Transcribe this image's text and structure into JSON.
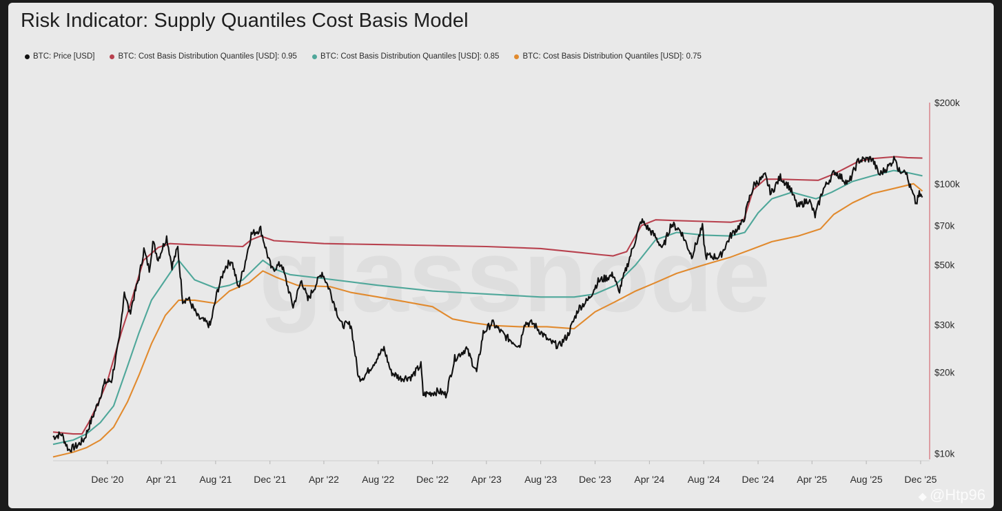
{
  "title": "Risk Indicator: Supply Quantiles Cost Basis Model",
  "watermark": "glassnode",
  "corner_tag": "@Htp96",
  "colors": {
    "price": "#111111",
    "q95": "#b8414e",
    "q85": "#4fa79a",
    "q75": "#e18a2e",
    "right_axis_line": "#d36a72"
  },
  "legend": [
    {
      "label": "BTC: Price [USD]",
      "color": "#111111"
    },
    {
      "label": "BTC: Cost Basis Distribution Quantiles [USD]: 0.95",
      "color": "#b8414e"
    },
    {
      "label": "BTC: Cost Basis Distribution Quantiles [USD]: 0.85",
      "color": "#4fa79a"
    },
    {
      "label": "BTC: Cost Basis Distribution Quantiles [USD]: 0.75",
      "color": "#e18a2e"
    }
  ],
  "chart_data": {
    "type": "line",
    "title": "Risk Indicator: Supply Quantiles Cost Basis Model",
    "xlabel": "",
    "ylabel": "",
    "yscale": "log",
    "ylim": [
      9500,
      200000
    ],
    "xlim": [
      "2020-08-01",
      "2025-12-15"
    ],
    "legend_position": "top-left",
    "grid": false,
    "y_ticks": [
      {
        "value": 10000,
        "label": "$10k"
      },
      {
        "value": 20000,
        "label": "$20k"
      },
      {
        "value": 30000,
        "label": "$30k"
      },
      {
        "value": 50000,
        "label": "$50k"
      },
      {
        "value": 70000,
        "label": "$70k"
      },
      {
        "value": 100000,
        "label": "$100k"
      },
      {
        "value": 200000,
        "label": "$200k"
      }
    ],
    "x_ticks": [
      {
        "date": "2020-12-01",
        "label": "Dec '20"
      },
      {
        "date": "2021-04-01",
        "label": "Apr '21"
      },
      {
        "date": "2021-08-01",
        "label": "Aug '21"
      },
      {
        "date": "2021-12-01",
        "label": "Dec '21"
      },
      {
        "date": "2022-04-01",
        "label": "Apr '22"
      },
      {
        "date": "2022-08-01",
        "label": "Aug '22"
      },
      {
        "date": "2022-12-01",
        "label": "Dec '22"
      },
      {
        "date": "2023-04-01",
        "label": "Apr '23"
      },
      {
        "date": "2023-08-01",
        "label": "Aug '23"
      },
      {
        "date": "2023-12-01",
        "label": "Dec '23"
      },
      {
        "date": "2024-04-01",
        "label": "Apr '24"
      },
      {
        "date": "2024-08-01",
        "label": "Aug '24"
      },
      {
        "date": "2024-12-01",
        "label": "Dec '24"
      },
      {
        "date": "2025-04-01",
        "label": "Apr '25"
      },
      {
        "date": "2025-08-01",
        "label": "Aug '25"
      },
      {
        "date": "2025-12-01",
        "label": "Dec '25"
      }
    ],
    "series": [
      {
        "name": "BTC: Price [USD]",
        "color": "#111111",
        "points": [
          [
            "2020-08-01",
            11500
          ],
          [
            "2020-08-20",
            11800
          ],
          [
            "2020-09-05",
            10300
          ],
          [
            "2020-09-25",
            10700
          ],
          [
            "2020-10-10",
            11300
          ],
          [
            "2020-10-25",
            13100
          ],
          [
            "2020-11-10",
            15400
          ],
          [
            "2020-11-25",
            18300
          ],
          [
            "2020-12-10",
            18600
          ],
          [
            "2020-12-28",
            26500
          ],
          [
            "2021-01-08",
            40000
          ],
          [
            "2021-01-20",
            33000
          ],
          [
            "2021-02-10",
            45000
          ],
          [
            "2021-02-21",
            57000
          ],
          [
            "2021-03-05",
            48000
          ],
          [
            "2021-03-13",
            61000
          ],
          [
            "2021-03-25",
            52500
          ],
          [
            "2021-04-13",
            63500
          ],
          [
            "2021-04-25",
            49500
          ],
          [
            "2021-05-08",
            58000
          ],
          [
            "2021-05-19",
            37000
          ],
          [
            "2021-06-01",
            37500
          ],
          [
            "2021-06-22",
            32000
          ],
          [
            "2021-07-20",
            29800
          ],
          [
            "2021-08-05",
            40000
          ],
          [
            "2021-08-22",
            49000
          ],
          [
            "2021-09-06",
            52000
          ],
          [
            "2021-09-21",
            41000
          ],
          [
            "2021-10-05",
            50000
          ],
          [
            "2021-10-20",
            65000
          ],
          [
            "2021-11-10",
            68000
          ],
          [
            "2021-11-26",
            54000
          ],
          [
            "2021-12-05",
            48000
          ],
          [
            "2021-12-27",
            50500
          ],
          [
            "2022-01-22",
            35000
          ],
          [
            "2022-02-10",
            44000
          ],
          [
            "2022-02-24",
            37000
          ],
          [
            "2022-03-28",
            47000
          ],
          [
            "2022-04-15",
            40000
          ],
          [
            "2022-05-10",
            30000
          ],
          [
            "2022-06-01",
            30000
          ],
          [
            "2022-06-18",
            19000
          ],
          [
            "2022-07-01",
            19300
          ],
          [
            "2022-08-14",
            24500
          ],
          [
            "2022-08-30",
            20000
          ],
          [
            "2022-09-20",
            19000
          ],
          [
            "2022-10-15",
            19200
          ],
          [
            "2022-11-05",
            21300
          ],
          [
            "2022-11-10",
            16500
          ],
          [
            "2022-12-15",
            17000
          ],
          [
            "2022-12-31",
            16500
          ],
          [
            "2023-01-20",
            22500
          ],
          [
            "2023-02-15",
            24500
          ],
          [
            "2023-03-10",
            20000
          ],
          [
            "2023-03-25",
            28000
          ],
          [
            "2023-04-14",
            30500
          ],
          [
            "2023-05-15",
            27000
          ],
          [
            "2023-06-15",
            25000
          ],
          [
            "2023-06-25",
            30500
          ],
          [
            "2023-07-15",
            30300
          ],
          [
            "2023-08-20",
            26000
          ],
          [
            "2023-09-11",
            25000
          ],
          [
            "2023-10-01",
            27500
          ],
          [
            "2023-10-25",
            34500
          ],
          [
            "2023-11-15",
            37000
          ],
          [
            "2023-12-08",
            43500
          ],
          [
            "2024-01-12",
            46000
          ],
          [
            "2024-01-23",
            39500
          ],
          [
            "2024-02-15",
            52000
          ],
          [
            "2024-03-14",
            73000
          ],
          [
            "2024-04-13",
            64000
          ],
          [
            "2024-05-01",
            57500
          ],
          [
            "2024-05-20",
            71000
          ],
          [
            "2024-06-10",
            67000
          ],
          [
            "2024-07-05",
            54000
          ],
          [
            "2024-07-29",
            69000
          ],
          [
            "2024-08-05",
            54000
          ],
          [
            "2024-09-06",
            53500
          ],
          [
            "2024-09-30",
            64000
          ],
          [
            "2024-10-29",
            72500
          ],
          [
            "2024-11-12",
            89000
          ],
          [
            "2024-11-22",
            99000
          ],
          [
            "2024-12-17",
            107000
          ],
          [
            "2024-12-30",
            92000
          ],
          [
            "2025-01-20",
            106000
          ],
          [
            "2025-02-10",
            97000
          ],
          [
            "2025-02-28",
            82000
          ],
          [
            "2025-03-25",
            87500
          ],
          [
            "2025-04-08",
            76000
          ],
          [
            "2025-04-25",
            94500
          ],
          [
            "2025-05-22",
            111000
          ],
          [
            "2025-06-22",
            100000
          ],
          [
            "2025-07-14",
            122000
          ],
          [
            "2025-08-14",
            124000
          ],
          [
            "2025-08-30",
            108000
          ],
          [
            "2025-09-20",
            116000
          ],
          [
            "2025-10-06",
            126000
          ],
          [
            "2025-10-12",
            111000
          ],
          [
            "2025-10-27",
            114000
          ],
          [
            "2025-11-04",
            101000
          ],
          [
            "2025-11-21",
            84000
          ],
          [
            "2025-11-28",
            91500
          ],
          [
            "2025-12-05",
            89000
          ]
        ]
      },
      {
        "name": "BTC: Cost Basis Distribution Quantiles [USD]: 0.95",
        "color": "#b8414e",
        "points": [
          [
            "2020-08-01",
            12000
          ],
          [
            "2020-09-15",
            11800
          ],
          [
            "2020-10-05",
            11800
          ],
          [
            "2020-10-20",
            13000
          ],
          [
            "2020-11-10",
            15300
          ],
          [
            "2020-12-01",
            18500
          ],
          [
            "2021-01-01",
            28000
          ],
          [
            "2021-01-20",
            35000
          ],
          [
            "2021-02-20",
            52000
          ],
          [
            "2021-03-25",
            58000
          ],
          [
            "2021-04-20",
            60000
          ],
          [
            "2021-06-01",
            59500
          ],
          [
            "2021-08-01",
            59000
          ],
          [
            "2021-10-01",
            58500
          ],
          [
            "2021-10-20",
            62000
          ],
          [
            "2021-11-10",
            64000
          ],
          [
            "2021-12-10",
            61500
          ],
          [
            "2022-04-01",
            60000
          ],
          [
            "2022-08-01",
            59500
          ],
          [
            "2022-12-01",
            59000
          ],
          [
            "2023-04-01",
            58500
          ],
          [
            "2023-08-01",
            57500
          ],
          [
            "2023-11-01",
            55500
          ],
          [
            "2023-12-15",
            54500
          ],
          [
            "2024-01-10",
            54000
          ],
          [
            "2024-02-10",
            56000
          ],
          [
            "2024-03-14",
            70000
          ],
          [
            "2024-04-15",
            73500
          ],
          [
            "2024-06-01",
            73000
          ],
          [
            "2024-08-01",
            72500
          ],
          [
            "2024-10-01",
            72000
          ],
          [
            "2024-10-30",
            73500
          ],
          [
            "2024-11-20",
            95000
          ],
          [
            "2024-12-17",
            104000
          ],
          [
            "2025-01-15",
            104000
          ],
          [
            "2025-03-01",
            103500
          ],
          [
            "2025-04-15",
            103000
          ],
          [
            "2025-05-22",
            109000
          ],
          [
            "2025-07-14",
            121000
          ],
          [
            "2025-08-14",
            124000
          ],
          [
            "2025-10-06",
            126000
          ],
          [
            "2025-11-01",
            125000
          ],
          [
            "2025-12-05",
            124500
          ]
        ]
      },
      {
        "name": "BTC: Cost Basis Distribution Quantiles [USD]: 0.85",
        "color": "#4fa79a",
        "points": [
          [
            "2020-08-01",
            10800
          ],
          [
            "2020-09-15",
            11200
          ],
          [
            "2020-10-15",
            11800
          ],
          [
            "2020-11-15",
            13000
          ],
          [
            "2020-12-15",
            15000
          ],
          [
            "2021-01-15",
            21000
          ],
          [
            "2021-02-10",
            28000
          ],
          [
            "2021-03-10",
            37000
          ],
          [
            "2021-04-10",
            44000
          ],
          [
            "2021-05-10",
            52000
          ],
          [
            "2021-06-15",
            44000
          ],
          [
            "2021-08-01",
            41000
          ],
          [
            "2021-09-01",
            42000
          ],
          [
            "2021-10-01",
            44000
          ],
          [
            "2021-11-15",
            52000
          ],
          [
            "2021-12-15",
            48000
          ],
          [
            "2022-01-15",
            46000
          ],
          [
            "2022-04-01",
            44500
          ],
          [
            "2022-08-01",
            42000
          ],
          [
            "2022-12-01",
            40000
          ],
          [
            "2023-04-01",
            39000
          ],
          [
            "2023-08-01",
            38000
          ],
          [
            "2023-10-15",
            38000
          ],
          [
            "2023-12-01",
            39000
          ],
          [
            "2024-01-15",
            42000
          ],
          [
            "2024-03-01",
            50000
          ],
          [
            "2024-04-15",
            62000
          ],
          [
            "2024-06-01",
            66000
          ],
          [
            "2024-08-01",
            64500
          ],
          [
            "2024-10-01",
            64000
          ],
          [
            "2024-11-01",
            66000
          ],
          [
            "2024-12-01",
            78000
          ],
          [
            "2025-01-01",
            88000
          ],
          [
            "2025-02-15",
            93000
          ],
          [
            "2025-04-10",
            88000
          ],
          [
            "2025-05-15",
            93000
          ],
          [
            "2025-07-01",
            102000
          ],
          [
            "2025-08-15",
            107000
          ],
          [
            "2025-10-01",
            112000
          ],
          [
            "2025-11-01",
            110000
          ],
          [
            "2025-12-05",
            107000
          ]
        ]
      },
      {
        "name": "BTC: Cost Basis Distribution Quantiles [USD]: 0.75",
        "color": "#e18a2e",
        "points": [
          [
            "2020-08-01",
            9700
          ],
          [
            "2020-09-15",
            10100
          ],
          [
            "2020-10-15",
            10500
          ],
          [
            "2020-11-15",
            11200
          ],
          [
            "2020-12-15",
            12500
          ],
          [
            "2021-01-15",
            15500
          ],
          [
            "2021-02-10",
            19500
          ],
          [
            "2021-03-10",
            25500
          ],
          [
            "2021-04-10",
            32500
          ],
          [
            "2021-05-10",
            37000
          ],
          [
            "2021-06-15",
            37000
          ],
          [
            "2021-08-01",
            36000
          ],
          [
            "2021-09-01",
            40000
          ],
          [
            "2021-10-15",
            43000
          ],
          [
            "2021-11-15",
            47500
          ],
          [
            "2021-12-15",
            45000
          ],
          [
            "2022-02-01",
            42000
          ],
          [
            "2022-04-15",
            41500
          ],
          [
            "2022-06-01",
            39500
          ],
          [
            "2022-08-01",
            38000
          ],
          [
            "2022-10-01",
            36500
          ],
          [
            "2022-12-01",
            35000
          ],
          [
            "2023-01-15",
            31500
          ],
          [
            "2023-03-01",
            30500
          ],
          [
            "2023-04-15",
            29800
          ],
          [
            "2023-06-15",
            29500
          ],
          [
            "2023-08-15",
            29500
          ],
          [
            "2023-10-15",
            29000
          ],
          [
            "2023-12-01",
            33500
          ],
          [
            "2024-01-15",
            36500
          ],
          [
            "2024-03-01",
            40000
          ],
          [
            "2024-04-15",
            43000
          ],
          [
            "2024-06-01",
            46500
          ],
          [
            "2024-08-01",
            50000
          ],
          [
            "2024-10-01",
            53500
          ],
          [
            "2024-11-15",
            57000
          ],
          [
            "2025-01-01",
            61000
          ],
          [
            "2025-03-01",
            64000
          ],
          [
            "2025-04-20",
            68000
          ],
          [
            "2025-05-20",
            77000
          ],
          [
            "2025-07-01",
            85000
          ],
          [
            "2025-08-15",
            92000
          ],
          [
            "2025-10-01",
            96000
          ],
          [
            "2025-11-15",
            100000
          ],
          [
            "2025-12-05",
            94000
          ]
        ]
      }
    ]
  }
}
